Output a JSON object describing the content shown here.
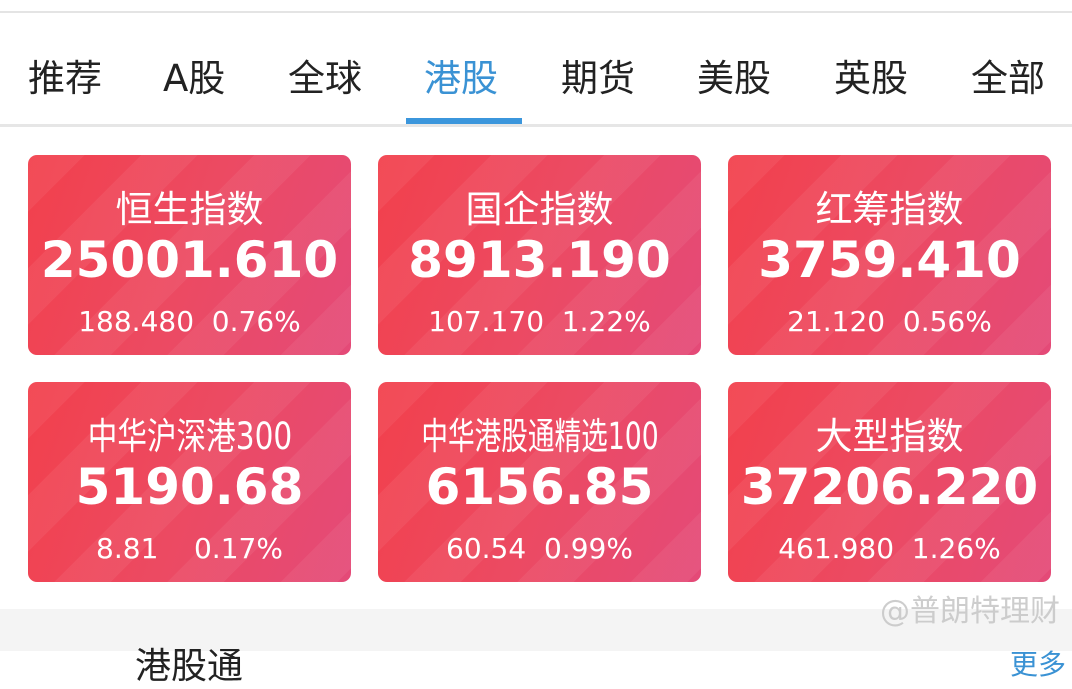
{
  "tabs": [
    {
      "label": "推荐",
      "active": false
    },
    {
      "label": "A股",
      "active": false
    },
    {
      "label": "全球",
      "active": false
    },
    {
      "label": "港股",
      "active": true
    },
    {
      "label": "期货",
      "active": false
    },
    {
      "label": "美股",
      "active": false
    },
    {
      "label": "英股",
      "active": false
    },
    {
      "label": "全部",
      "active": false
    }
  ],
  "accent_color": "#3a92d4",
  "card_color": "#ee4458",
  "cards": [
    {
      "name": "恒生指数",
      "value": "25001.610",
      "change": "188.480  0.76%"
    },
    {
      "name": "国企指数",
      "value": "8913.190",
      "change": "107.170  1.22%"
    },
    {
      "name": "红筹指数",
      "value": "3759.410",
      "change": "21.120  0.56%"
    },
    {
      "name": "中华沪深港300",
      "value": "5190.68",
      "change": "8.81    0.17%"
    },
    {
      "name": "中华港股通精选100",
      "value": "6156.85",
      "change": "60.54  0.99%"
    },
    {
      "name": "大型指数",
      "value": "37206.220",
      "change": "461.980  1.26%"
    }
  ],
  "section": {
    "title": "港股通",
    "more": "更多"
  },
  "watermark": "@普朗特理财"
}
